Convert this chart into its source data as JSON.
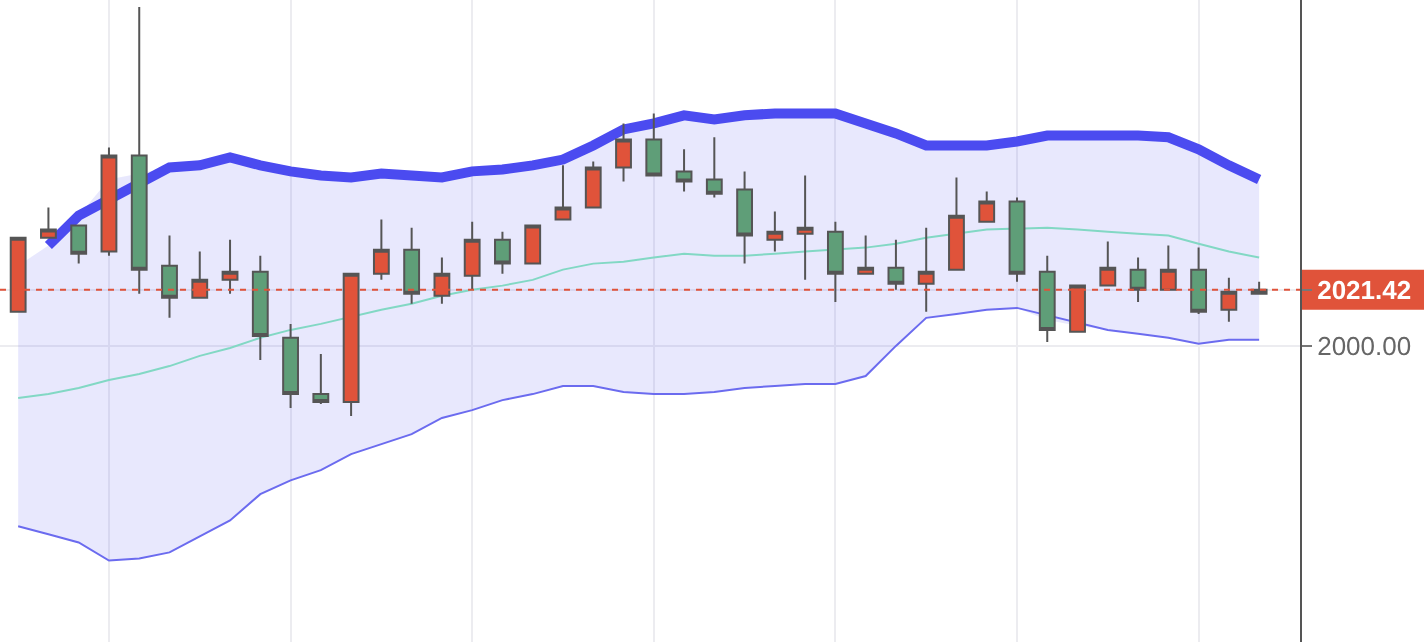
{
  "chart_data": {
    "type": "candlestick",
    "categories": [
      null,
      null,
      null,
      null,
      null,
      null,
      null,
      null,
      null,
      null,
      null,
      null,
      null,
      null,
      null,
      null,
      null,
      null,
      null,
      null,
      null,
      null,
      null,
      null,
      null,
      null,
      null,
      null,
      null,
      null,
      null,
      null,
      null,
      null,
      null,
      null,
      null,
      null,
      null,
      null,
      null,
      null
    ],
    "ohlc": [
      [
        2013.0,
        2041.3,
        2013.0,
        2041.3
      ],
      [
        2041.3,
        2052.8,
        2041.3,
        2044.4
      ],
      [
        2045.9,
        2045.9,
        2031.4,
        2035.2
      ],
      [
        2036.0,
        2075.7,
        2034.4,
        2072.7
      ],
      [
        2072.7,
        2129.3,
        2019.9,
        2029.1
      ],
      [
        2030.6,
        2042.1,
        2010.7,
        2018.4
      ],
      [
        2018.4,
        2036.0,
        2018.4,
        2025.2
      ],
      [
        2025.2,
        2040.5,
        2019.9,
        2028.3
      ],
      [
        2028.3,
        2034.4,
        1994.6,
        2003.8
      ],
      [
        2003.1,
        2008.4,
        1976.3,
        1981.6
      ],
      [
        1981.6,
        1996.9,
        1977.8,
        1978.6
      ],
      [
        1978.6,
        2027.5,
        1973.2,
        2027.5
      ],
      [
        2027.5,
        2048.2,
        2025.2,
        2036.7
      ],
      [
        2036.7,
        2045.1,
        2016.1,
        2019.9
      ],
      [
        2019.1,
        2033.7,
        2016.1,
        2027.5
      ],
      [
        2026.8,
        2047.4,
        2021.4,
        2040.5
      ],
      [
        2040.5,
        2043.6,
        2027.5,
        2031.4
      ],
      [
        2031.4,
        2045.9,
        2031.4,
        2045.9
      ],
      [
        2048.2,
        2068.9,
        2048.2,
        2052.8
      ],
      [
        2052.8,
        2070.4,
        2052.8,
        2068.1
      ],
      [
        2068.1,
        2084.9,
        2062.7,
        2078.8
      ],
      [
        2078.8,
        2088.7,
        2065.0,
        2065.0
      ],
      [
        2066.6,
        2075.0,
        2058.9,
        2062.7
      ],
      [
        2063.5,
        2079.6,
        2056.6,
        2058.1
      ],
      [
        2059.7,
        2066.6,
        2031.4,
        2042.1
      ],
      [
        2040.5,
        2051.3,
        2036.0,
        2043.6
      ],
      [
        2042.8,
        2065.0,
        2025.2,
        2045.1
      ],
      [
        2043.6,
        2047.4,
        2016.8,
        2027.5
      ],
      [
        2027.5,
        2042.1,
        2027.5,
        2029.8
      ],
      [
        2029.8,
        2040.5,
        2021.4,
        2023.7
      ],
      [
        2023.7,
        2045.1,
        2013.0,
        2028.3
      ],
      [
        2029.1,
        2064.3,
        2029.1,
        2049.7
      ],
      [
        2047.4,
        2058.9,
        2047.4,
        2055.1
      ],
      [
        2055.1,
        2056.6,
        2024.5,
        2027.5
      ],
      [
        2028.3,
        2034.4,
        2001.5,
        2006.1
      ],
      [
        2005.4,
        2023.0,
        2005.4,
        2023.0
      ],
      [
        2023.0,
        2039.8,
        2023.0,
        2029.8
      ],
      [
        2029.1,
        2033.7,
        2016.8,
        2021.4
      ],
      [
        2021.4,
        2038.3,
        2021.4,
        2029.1
      ],
      [
        2029.1,
        2037.5,
        2012.2,
        2013.0
      ],
      [
        2013.8,
        2026.0,
        2009.2,
        2020.7
      ],
      [
        2019.9,
        2024.5,
        2019.9,
        2021.4
      ]
    ],
    "colors": [
      "#e0533a",
      "#e0533a",
      "#5f9e78",
      "#e0533a",
      "#5f9e78",
      "#5f9e78",
      "#e0533a",
      "#e0533a",
      "#5f9e78",
      "#5f9e78",
      "#5f9e78",
      "#e0533a",
      "#e0533a",
      "#5f9e78",
      "#e0533a",
      "#e0533a",
      "#5f9e78",
      "#e0533a",
      "#e0533a",
      "#e0533a",
      "#e0533a",
      "#5f9e78",
      "#5f9e78",
      "#5f9e78",
      "#5f9e78",
      "#e0533a",
      "#e0533a",
      "#5f9e78",
      "#e0533a",
      "#5f9e78",
      "#e0533a",
      "#e0533a",
      "#e0533a",
      "#5f9e78",
      "#5f9e78",
      "#e0533a",
      "#e0533a",
      "#5f9e78",
      "#e0533a",
      "#5f9e78",
      "#e0533a",
      "#e0533a"
    ],
    "series": [
      {
        "type": "line",
        "color": "#4b4bf0",
        "values": [
          null,
          2038.3,
          2049.7,
          null,
          null,
          2068.1,
          2068.9,
          2071.9,
          2068.9,
          2066.6,
          2065.0,
          2064.3,
          2065.8,
          2065.0,
          2064.3,
          2066.6,
          2067.3,
          2068.9,
          2071.1,
          2076.5,
          2082.6,
          2084.9,
          2088.0,
          2086.4,
          2088.0,
          2088.7,
          2088.7,
          2088.7,
          2084.9,
          2081.1,
          2076.5,
          2076.5,
          2076.5,
          2078.0,
          2080.3,
          2080.3,
          2080.3,
          2080.3,
          2079.6,
          2075.0,
          2068.9,
          2063.5
        ]
      },
      {
        "type": "line",
        "color": "#82d8c4",
        "values": [
          1980.1,
          1981.6,
          1983.9,
          1987.0,
          1989.3,
          1992.3,
          1996.2,
          1999.2,
          2003.1,
          2006.1,
          2008.4,
          null,
          2013.8,
          2016.1,
          2019.1,
          2021.4,
          2023.0,
          2025.2,
          2029.1,
          2031.4,
          2032.1,
          2033.7,
          2035.2,
          2034.4,
          2034.4,
          2035.2,
          2036.0,
          null,
          2037.5,
          2039.0,
          2041.3,
          null,
          2044.4,
          null,
          2045.1,
          2044.4,
          2043.6,
          2042.8,
          2042.1,
          2039.0,
          2036.0,
          2033.7
        ],
        "upper": [
          2030.6,
          2038.3,
          2049.7,
          2063.5,
          2065.8,
          2068.1,
          2068.9,
          2071.9,
          2068.9,
          2066.6,
          2065.0,
          2064.3,
          2065.8,
          2065.0,
          2064.3,
          2066.6,
          2067.3,
          2068.9,
          2071.1,
          2076.5,
          2082.6,
          2084.9,
          2088.0,
          2086.4,
          2088.0,
          2088.7,
          2088.7,
          2088.7,
          2084.9,
          2081.1,
          2076.5,
          2076.5,
          2076.5,
          2078.0,
          2080.3,
          2080.3,
          2080.3,
          2080.3,
          2079.6,
          2075.0,
          2068.9,
          2063.5
        ],
        "lower": [
          1931.2,
          1928.1,
          1925.0,
          1918.1,
          1918.9,
          1921.2,
          1927.3,
          1933.4,
          1943.4,
          1948.7,
          1952.6,
          1958.7,
          1962.5,
          1966.3,
          1972.5,
          1975.5,
          1979.3,
          1981.6,
          1984.7,
          1984.7,
          1982.4,
          1981.6,
          1981.6,
          1982.4,
          1983.9,
          1984.7,
          1985.5,
          1985.5,
          1988.5,
          2000.0,
          2010.7,
          2012.2,
          2013.8,
          2014.5,
          2009.9,
          2007.7,
          2006.1,
          2004.6,
          2003.1,
          2000.8,
          2002.3,
          2002.3
        ]
      },
      {
        "type": "line",
        "color": "#6b6bef",
        "values": [
          1931.2,
          1928.1,
          1925.0,
          1918.1,
          1918.9,
          1921.2,
          1927.3,
          1933.4,
          1943.4,
          1948.7,
          1952.6,
          1958.7,
          1962.5,
          1966.3,
          1972.5,
          1975.5,
          1979.3,
          1981.6,
          1984.7,
          1984.7,
          1982.4,
          1981.6,
          1981.6,
          1982.4,
          1983.9,
          1984.7,
          1985.5,
          1985.5,
          1988.5,
          2000.0,
          2010.7,
          2012.2,
          2013.8,
          2014.5,
          null,
          null,
          2006.1,
          2004.6,
          2003.1,
          2000.8,
          2002.3,
          2002.3
        ]
      }
    ],
    "ylim": [
      1887,
      2132
    ],
    "yticks": [
      {
        "value": 2000,
        "label": "2000.00"
      },
      {
        "value": 2021.42,
        "label": "2021.42"
      }
    ],
    "ref_lines": [
      {
        "axis": "y",
        "value": 2021.42,
        "color": "#e0533a",
        "line_style": "dotted"
      }
    ],
    "grid": true
  }
}
